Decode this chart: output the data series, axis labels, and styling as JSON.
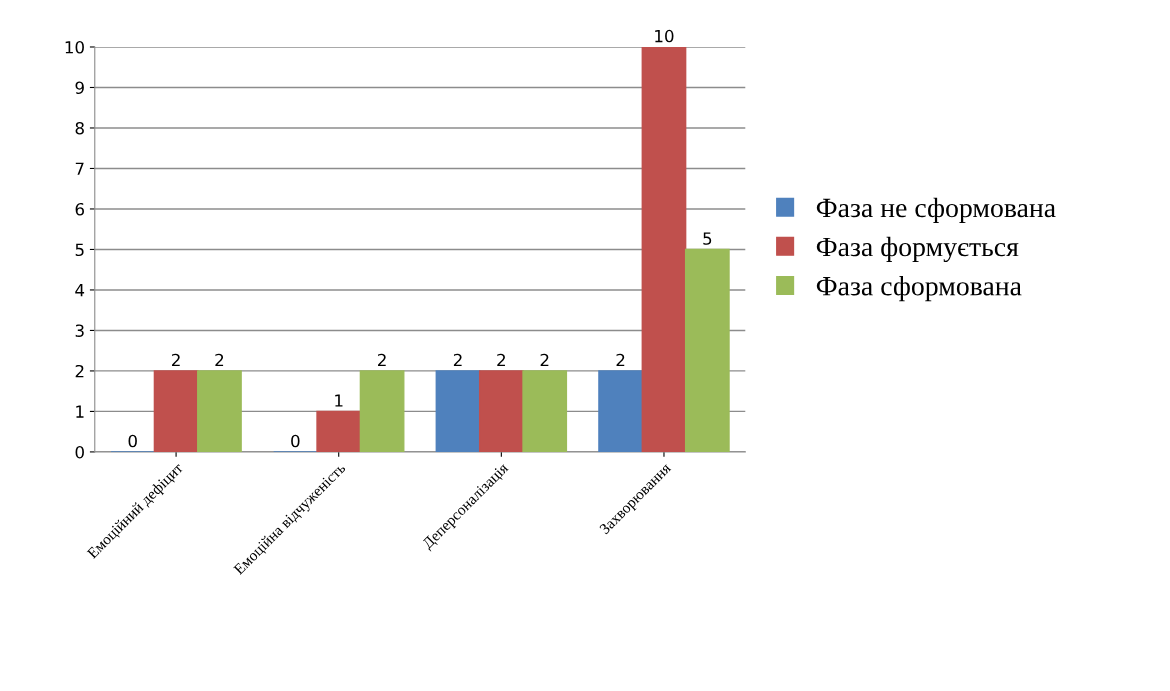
{
  "chart_data": {
    "type": "bar",
    "categories": [
      "Емоційний дефіцит",
      "Емоційна відчуженість",
      "Деперсоналізація",
      "Захворювання"
    ],
    "series": [
      {
        "name": "Фаза не сформована",
        "color": "#4f81bd",
        "values": [
          0,
          0,
          2,
          2
        ]
      },
      {
        "name": "Фаза формується",
        "color": "#c0504d",
        "values": [
          2,
          1,
          2,
          10
        ]
      },
      {
        "name": "Фаза сформована",
        "color": "#9bbb59",
        "values": [
          2,
          2,
          2,
          5
        ]
      }
    ],
    "ylim": [
      0,
      10
    ],
    "yticks": [
      0,
      1,
      2,
      3,
      4,
      5,
      6,
      7,
      8,
      9,
      10
    ],
    "grid": "y",
    "legend": "right",
    "data_labels": true
  }
}
